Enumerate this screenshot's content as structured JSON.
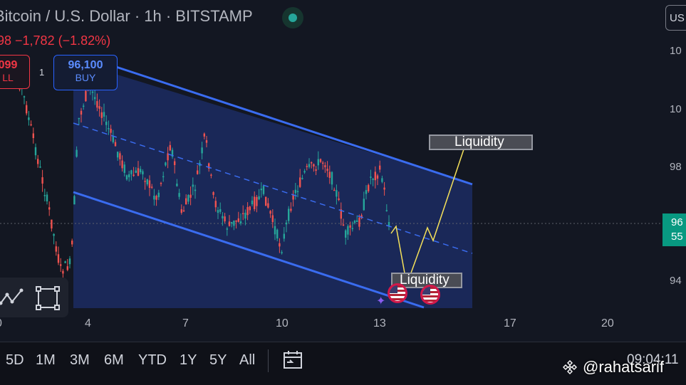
{
  "header": {
    "title": "Bitcoin / U.S. Dollar · 1h · BITSTAMP",
    "currency": "US",
    "change": "98 −1,782 (−1.82%)"
  },
  "trade": {
    "sell_price": "099",
    "sell_label": "LL",
    "spread": "1",
    "buy_price": "96,100",
    "buy_label": "BUY"
  },
  "price_scale": [
    "10",
    "10",
    "98",
    "94"
  ],
  "price_tag": {
    "line1": "96",
    "line2": "55"
  },
  "date_axis": [
    "0",
    "4",
    "7",
    "10",
    "13",
    "17",
    "20"
  ],
  "annotations": {
    "liquidity_top": "Liquidity",
    "liquidity_bottom": "Liquidity"
  },
  "timeframes": [
    "5D",
    "1M",
    "3M",
    "6M",
    "YTD",
    "1Y",
    "5Y",
    "All"
  ],
  "clock": "09:04:11",
  "watermark": "@rahatsarif",
  "colors": {
    "up": "#26a69a",
    "down": "#ef5350",
    "channel": "#3a6cf0",
    "projection": "#f5e15a",
    "background": "#131722"
  },
  "icons": [
    "live-status-icon",
    "path-tool-icon",
    "rectangle-tool-icon",
    "replay-icon",
    "us-flag-icon",
    "binance-icon"
  ]
}
